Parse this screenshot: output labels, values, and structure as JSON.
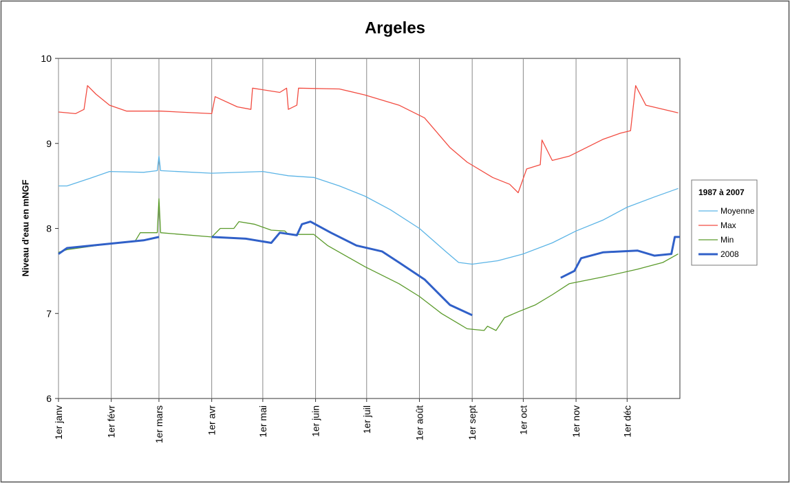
{
  "chart_data": {
    "type": "line",
    "title": "Argeles",
    "y_label": "Niveau d'eau en mNGF",
    "legend_title": "1987 à 2007",
    "legend": "right",
    "grid": true,
    "xlim": [
      0,
      365
    ],
    "xticks": [
      {
        "value": 0,
        "label": "1er janv"
      },
      {
        "value": 31,
        "label": "1er févr"
      },
      {
        "value": 59,
        "label": "1er mars"
      },
      {
        "value": 90,
        "label": "1er avr"
      },
      {
        "value": 120,
        "label": "1er mai"
      },
      {
        "value": 151,
        "label": "1er juin"
      },
      {
        "value": 181,
        "label": "1er juil"
      },
      {
        "value": 212,
        "label": "1er août"
      },
      {
        "value": 243,
        "label": "1er sept"
      },
      {
        "value": 273,
        "label": "1er oct"
      },
      {
        "value": 304,
        "label": "1er nov"
      },
      {
        "value": 334,
        "label": "1er déc"
      }
    ],
    "ylim": [
      6,
      10
    ],
    "yticks": [
      6,
      7,
      8,
      9,
      10
    ],
    "series": [
      {
        "name": "Moyenne",
        "color": "#5bb4e6",
        "width": 1.3,
        "x": [
          0,
          5,
          20,
          30,
          50,
          58,
          59,
          60,
          90,
          120,
          135,
          150,
          165,
          180,
          195,
          212,
          228,
          235,
          243,
          258,
          273,
          290,
          304,
          320,
          334,
          350,
          364
        ],
        "values": [
          8.5,
          8.5,
          8.6,
          8.67,
          8.66,
          8.68,
          8.85,
          8.68,
          8.65,
          8.67,
          8.62,
          8.6,
          8.5,
          8.38,
          8.22,
          8.0,
          7.72,
          7.6,
          7.58,
          7.62,
          7.7,
          7.83,
          7.97,
          8.1,
          8.25,
          8.37,
          8.47
        ]
      },
      {
        "name": "Max",
        "color": "#f24b40",
        "width": 1.3,
        "x": [
          0,
          10,
          15,
          17,
          22,
          30,
          40,
          60,
          90,
          92,
          105,
          113,
          114,
          130,
          134,
          135,
          140,
          141,
          165,
          180,
          200,
          215,
          230,
          240,
          255,
          265,
          270,
          275,
          283,
          284,
          290,
          300,
          320,
          330,
          336,
          339,
          345,
          364
        ],
        "values": [
          9.37,
          9.35,
          9.4,
          9.68,
          9.58,
          9.45,
          9.38,
          9.38,
          9.35,
          9.55,
          9.43,
          9.4,
          9.65,
          9.6,
          9.65,
          9.4,
          9.45,
          9.65,
          9.64,
          9.57,
          9.45,
          9.3,
          8.95,
          8.78,
          8.6,
          8.52,
          8.42,
          8.7,
          8.75,
          9.04,
          8.8,
          8.85,
          9.05,
          9.12,
          9.15,
          9.68,
          9.45,
          9.36
        ]
      },
      {
        "name": "Min",
        "color": "#5a9a2a",
        "width": 1.3,
        "x": [
          0,
          5,
          30,
          45,
          48,
          58,
          59,
          60,
          90,
          95,
          103,
          106,
          115,
          125,
          133,
          135,
          150,
          158,
          180,
          200,
          212,
          225,
          235,
          240,
          250,
          252,
          257,
          262,
          270,
          280,
          290,
          300,
          320,
          340,
          355,
          364
        ],
        "values": [
          7.72,
          7.75,
          7.82,
          7.85,
          7.95,
          7.95,
          8.35,
          7.95,
          7.9,
          8.0,
          8.0,
          8.08,
          8.05,
          7.98,
          7.97,
          7.93,
          7.93,
          7.8,
          7.55,
          7.35,
          7.2,
          7.0,
          6.88,
          6.82,
          6.8,
          6.85,
          6.8,
          6.95,
          7.02,
          7.1,
          7.22,
          7.35,
          7.43,
          7.52,
          7.6,
          7.7
        ]
      },
      {
        "name": "2008",
        "color": "#3060c8",
        "width": 3,
        "x": [
          0,
          5,
          30,
          50,
          59,
          75,
          90,
          110,
          125,
          130,
          140,
          143,
          148,
          160,
          175,
          190,
          200,
          215,
          230,
          243,
          270,
          295,
          303,
          307,
          320,
          340,
          350,
          360,
          362,
          365
        ],
        "values": [
          7.7,
          7.77,
          7.82,
          7.86,
          7.9,
          null,
          7.9,
          7.88,
          7.83,
          7.95,
          7.92,
          8.05,
          8.08,
          7.95,
          7.8,
          7.73,
          7.6,
          7.4,
          7.1,
          6.98,
          null,
          7.42,
          7.5,
          7.65,
          7.72,
          7.74,
          7.68,
          7.7,
          7.9,
          7.9
        ]
      }
    ]
  }
}
